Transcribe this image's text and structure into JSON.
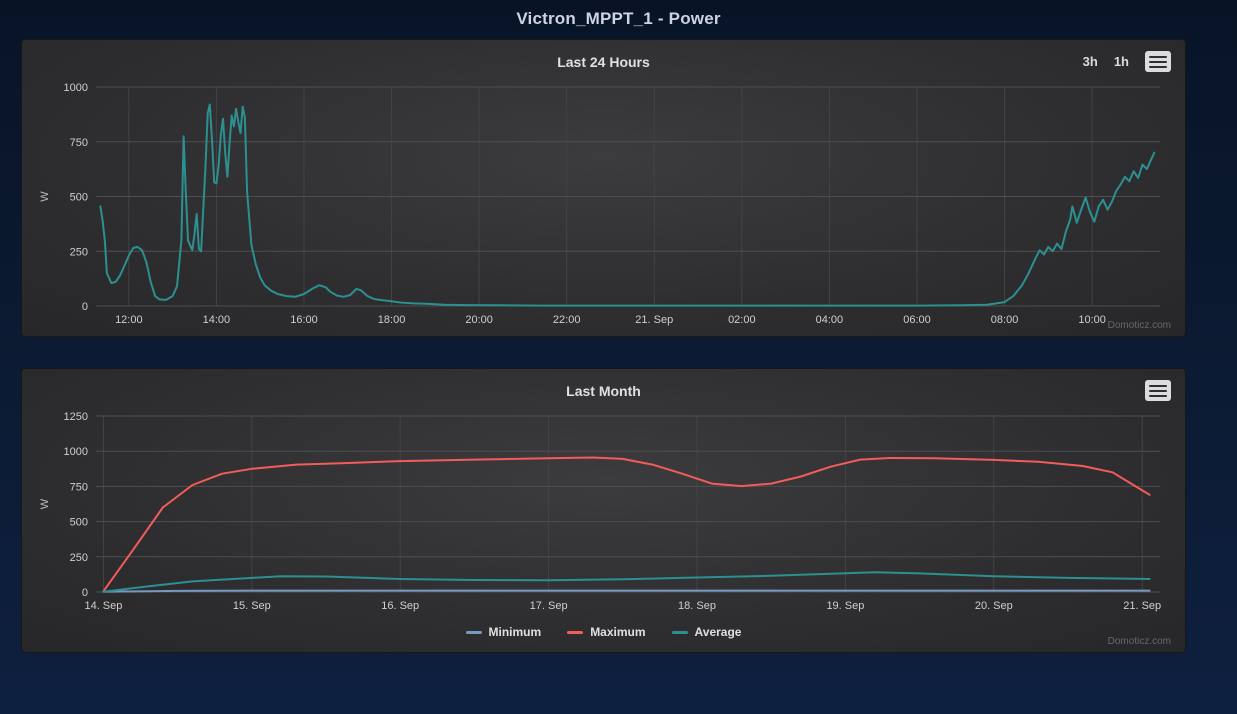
{
  "page": {
    "title": "Victron_MPPT_1 - Power"
  },
  "watermark": "Domoticz.com",
  "colors": {
    "background_navy": "#0c1b34",
    "panel_dark": "#2e2e30",
    "grid": "#4b4b4e",
    "tick_text": "#cfcfd3",
    "title_text": "#e0e0e3",
    "power_teal": "#2b908f",
    "maximum_red": "#f45b5b",
    "minimum_blue": "#7798bf"
  },
  "chart_data": [
    {
      "type": "line",
      "title": "Last 24 Hours",
      "buttons": [
        "3h",
        "1h"
      ],
      "ylabel": "W",
      "xlabel": "",
      "ylim": [
        0,
        1000
      ],
      "yticks": [
        0,
        250,
        500,
        750,
        1000
      ],
      "xlim": [
        11.25,
        35.55
      ],
      "xticks": [
        {
          "v": 12,
          "label": "12:00"
        },
        {
          "v": 14,
          "label": "14:00"
        },
        {
          "v": 16,
          "label": "16:00"
        },
        {
          "v": 18,
          "label": "18:00"
        },
        {
          "v": 20,
          "label": "20:00"
        },
        {
          "v": 22,
          "label": "22:00"
        },
        {
          "v": 24,
          "label": "21. Sep"
        },
        {
          "v": 26,
          "label": "02:00"
        },
        {
          "v": 28,
          "label": "04:00"
        },
        {
          "v": 30,
          "label": "06:00"
        },
        {
          "v": 32,
          "label": "08:00"
        },
        {
          "v": 34,
          "label": "10:00"
        }
      ],
      "grid": true,
      "legend_position": "none",
      "series": [
        {
          "name": "Power",
          "color": "#2b908f",
          "points": [
            [
              11.35,
              455
            ],
            [
              11.4,
              390
            ],
            [
              11.45,
              300
            ],
            [
              11.5,
              150
            ],
            [
              11.6,
              105
            ],
            [
              11.7,
              110
            ],
            [
              11.8,
              140
            ],
            [
              11.9,
              185
            ],
            [
              12.0,
              230
            ],
            [
              12.1,
              265
            ],
            [
              12.2,
              270
            ],
            [
              12.3,
              255
            ],
            [
              12.4,
              200
            ],
            [
              12.5,
              110
            ],
            [
              12.6,
              45
            ],
            [
              12.7,
              30
            ],
            [
              12.85,
              28
            ],
            [
              13.0,
              45
            ],
            [
              13.1,
              90
            ],
            [
              13.2,
              300
            ],
            [
              13.25,
              775
            ],
            [
              13.3,
              520
            ],
            [
              13.35,
              300
            ],
            [
              13.45,
              255
            ],
            [
              13.5,
              330
            ],
            [
              13.55,
              420
            ],
            [
              13.6,
              260
            ],
            [
              13.65,
              250
            ],
            [
              13.75,
              640
            ],
            [
              13.8,
              880
            ],
            [
              13.85,
              920
            ],
            [
              13.9,
              760
            ],
            [
              13.95,
              565
            ],
            [
              14.0,
              560
            ],
            [
              14.05,
              640
            ],
            [
              14.1,
              780
            ],
            [
              14.15,
              855
            ],
            [
              14.2,
              700
            ],
            [
              14.25,
              590
            ],
            [
              14.3,
              740
            ],
            [
              14.35,
              870
            ],
            [
              14.4,
              820
            ],
            [
              14.45,
              900
            ],
            [
              14.5,
              840
            ],
            [
              14.55,
              790
            ],
            [
              14.6,
              910
            ],
            [
              14.65,
              860
            ],
            [
              14.7,
              520
            ],
            [
              14.8,
              280
            ],
            [
              14.9,
              190
            ],
            [
              15.0,
              130
            ],
            [
              15.1,
              95
            ],
            [
              15.25,
              70
            ],
            [
              15.4,
              55
            ],
            [
              15.6,
              45
            ],
            [
              15.8,
              42
            ],
            [
              16.0,
              55
            ],
            [
              16.2,
              80
            ],
            [
              16.35,
              95
            ],
            [
              16.5,
              85
            ],
            [
              16.6,
              65
            ],
            [
              16.75,
              48
            ],
            [
              16.9,
              42
            ],
            [
              17.05,
              50
            ],
            [
              17.2,
              78
            ],
            [
              17.3,
              72
            ],
            [
              17.45,
              45
            ],
            [
              17.6,
              32
            ],
            [
              17.8,
              26
            ],
            [
              18.0,
              22
            ],
            [
              18.2,
              16
            ],
            [
              18.5,
              12
            ],
            [
              18.8,
              10
            ],
            [
              19.2,
              6
            ],
            [
              19.8,
              4
            ],
            [
              20.5,
              3
            ],
            [
              21.5,
              2
            ],
            [
              22.5,
              2
            ],
            [
              24.0,
              2
            ],
            [
              25.5,
              2
            ],
            [
              27.0,
              2
            ],
            [
              28.5,
              2
            ],
            [
              30.0,
              2
            ],
            [
              31.0,
              3
            ],
            [
              31.6,
              6
            ],
            [
              32.0,
              18
            ],
            [
              32.2,
              45
            ],
            [
              32.4,
              95
            ],
            [
              32.55,
              150
            ],
            [
              32.7,
              215
            ],
            [
              32.8,
              255
            ],
            [
              32.9,
              235
            ],
            [
              33.0,
              270
            ],
            [
              33.1,
              250
            ],
            [
              33.2,
              285
            ],
            [
              33.3,
              260
            ],
            [
              33.4,
              340
            ],
            [
              33.5,
              395
            ],
            [
              33.55,
              455
            ],
            [
              33.65,
              380
            ],
            [
              33.75,
              440
            ],
            [
              33.85,
              495
            ],
            [
              33.95,
              430
            ],
            [
              34.05,
              385
            ],
            [
              34.15,
              455
            ],
            [
              34.25,
              485
            ],
            [
              34.35,
              440
            ],
            [
              34.45,
              475
            ],
            [
              34.55,
              525
            ],
            [
              34.65,
              555
            ],
            [
              34.75,
              590
            ],
            [
              34.85,
              570
            ],
            [
              34.95,
              615
            ],
            [
              35.05,
              585
            ],
            [
              35.15,
              645
            ],
            [
              35.25,
              625
            ],
            [
              35.35,
              670
            ],
            [
              35.42,
              700
            ]
          ]
        }
      ]
    },
    {
      "type": "line",
      "title": "Last Month",
      "ylabel": "W",
      "xlabel": "",
      "ylim": [
        0,
        1250
      ],
      "yticks": [
        0,
        250,
        500,
        750,
        1000,
        1250
      ],
      "xlim": [
        13.95,
        21.12
      ],
      "xticks": [
        {
          "v": 14,
          "label": "14. Sep"
        },
        {
          "v": 15,
          "label": "15. Sep"
        },
        {
          "v": 16,
          "label": "16. Sep"
        },
        {
          "v": 17,
          "label": "17. Sep"
        },
        {
          "v": 18,
          "label": "18. Sep"
        },
        {
          "v": 19,
          "label": "19. Sep"
        },
        {
          "v": 20,
          "label": "20. Sep"
        },
        {
          "v": 21,
          "label": "21. Sep"
        }
      ],
      "grid": true,
      "legend_position": "bottom",
      "series": [
        {
          "name": "Minimum",
          "color": "#7798bf",
          "points": [
            [
              14.0,
              2
            ],
            [
              14.5,
              8
            ],
            [
              15.0,
              10
            ],
            [
              16.0,
              10
            ],
            [
              17.0,
              10
            ],
            [
              18.0,
              10
            ],
            [
              19.0,
              10
            ],
            [
              20.0,
              10
            ],
            [
              21.05,
              10
            ]
          ]
        },
        {
          "name": "Maximum",
          "color": "#f45b5b",
          "points": [
            [
              14.0,
              5
            ],
            [
              14.2,
              300
            ],
            [
              14.4,
              600
            ],
            [
              14.6,
              760
            ],
            [
              14.8,
              840
            ],
            [
              15.0,
              875
            ],
            [
              15.3,
              905
            ],
            [
              15.6,
              915
            ],
            [
              16.0,
              930
            ],
            [
              16.5,
              940
            ],
            [
              17.0,
              950
            ],
            [
              17.3,
              955
            ],
            [
              17.5,
              945
            ],
            [
              17.7,
              905
            ],
            [
              17.9,
              840
            ],
            [
              18.1,
              770
            ],
            [
              18.3,
              752
            ],
            [
              18.5,
              770
            ],
            [
              18.7,
              820
            ],
            [
              18.9,
              890
            ],
            [
              19.1,
              940
            ],
            [
              19.3,
              952
            ],
            [
              19.6,
              950
            ],
            [
              20.0,
              938
            ],
            [
              20.3,
              925
            ],
            [
              20.6,
              895
            ],
            [
              20.8,
              850
            ],
            [
              21.05,
              690
            ]
          ]
        },
        {
          "name": "Average",
          "color": "#2b908f",
          "points": [
            [
              14.0,
              2
            ],
            [
              14.3,
              40
            ],
            [
              14.6,
              75
            ],
            [
              15.0,
              100
            ],
            [
              15.2,
              112
            ],
            [
              15.5,
              110
            ],
            [
              16.0,
              92
            ],
            [
              16.5,
              85
            ],
            [
              17.0,
              83
            ],
            [
              17.5,
              90
            ],
            [
              18.0,
              103
            ],
            [
              18.5,
              115
            ],
            [
              19.0,
              133
            ],
            [
              19.2,
              140
            ],
            [
              19.5,
              132
            ],
            [
              20.0,
              112
            ],
            [
              20.5,
              100
            ],
            [
              21.05,
              92
            ]
          ]
        }
      ]
    }
  ]
}
